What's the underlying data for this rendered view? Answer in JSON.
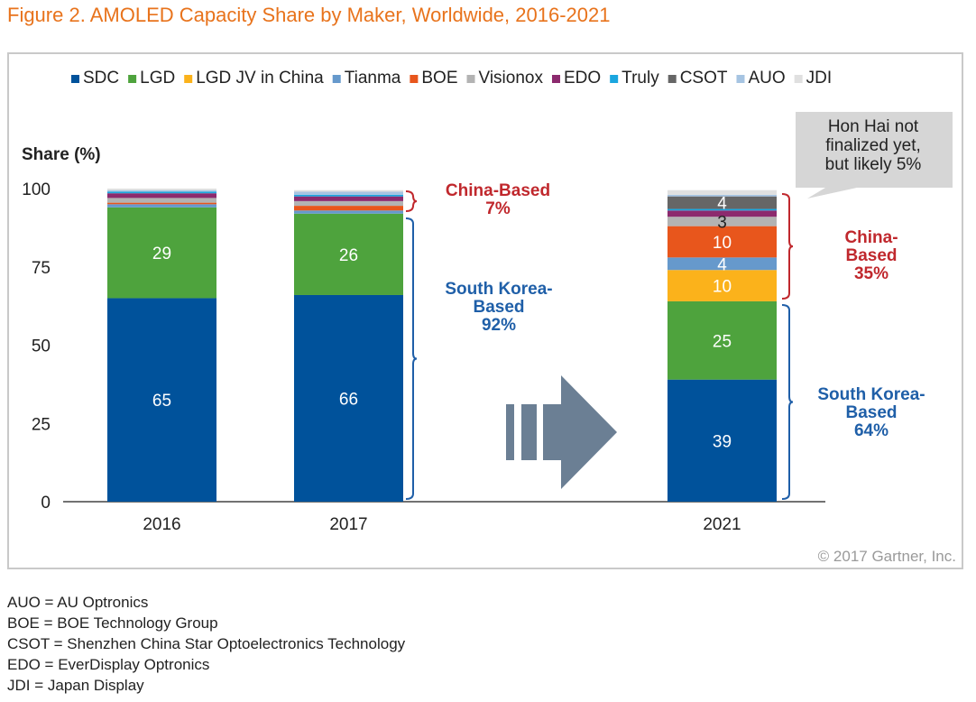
{
  "figure_title": "Figure 2. AMOLED Capacity Share by Maker, Worldwide, 2016-2021",
  "copyright": "© 2017 Gartner, Inc.",
  "callout": [
    "Hon Hai not",
    "finalized yet,",
    "but likely 5%"
  ],
  "group_labels": {
    "china_2017": [
      "China-Based",
      "7%"
    ],
    "korea_2017": [
      "South Korea-",
      "Based",
      "92%"
    ],
    "china_2021": [
      "China-",
      "Based",
      "35%"
    ],
    "korea_2021": [
      "South Korea-",
      "Based",
      "64%"
    ]
  },
  "footnotes": [
    "AUO = AU Optronics",
    "BOE = BOE Technology Group",
    "CSOT = Shenzhen China Star Optoelectronics Technology",
    "EDO = EverDisplay Optronics",
    "JDI = Japan Display"
  ],
  "colors": {
    "title": "#e8731c",
    "china_label": "#c0282d",
    "korea_label": "#1f5fa8",
    "callout_bg": "#d6d6d6",
    "arrow": "#6b7f94"
  },
  "chart_data": {
    "type": "bar",
    "stacked": true,
    "ylabel": "Share (%)",
    "ylim": [
      0,
      100
    ],
    "yticks": [
      0,
      25,
      50,
      75,
      100
    ],
    "grid": false,
    "legend_position": "top",
    "categories": [
      "2016",
      "2017",
      "2021"
    ],
    "series": [
      {
        "name": "SDC",
        "color": "#00529b",
        "values": [
          65,
          66,
          39
        ]
      },
      {
        "name": "LGD",
        "color": "#4ea33d",
        "values": [
          29,
          26,
          25
        ]
      },
      {
        "name": "LGD JV in China",
        "color": "#fbb21b",
        "values": [
          0,
          0,
          10
        ]
      },
      {
        "name": "Tianma",
        "color": "#6699cc",
        "values": [
          1,
          1,
          4
        ]
      },
      {
        "name": "BOE",
        "color": "#e8561c",
        "values": [
          0.5,
          1.5,
          10
        ]
      },
      {
        "name": "Visionox",
        "color": "#b3b3b3",
        "values": [
          1.5,
          1.5,
          3
        ]
      },
      {
        "name": "EDO",
        "color": "#8c2a6e",
        "values": [
          1.5,
          1.5,
          2
        ]
      },
      {
        "name": "Truly",
        "color": "#1aa6df",
        "values": [
          0.5,
          0.5,
          0.5
        ]
      },
      {
        "name": "CSOT",
        "color": "#666666",
        "values": [
          0,
          0,
          4
        ]
      },
      {
        "name": "AUO",
        "color": "#a6c4e2",
        "values": [
          0.5,
          1,
          0.5
        ]
      },
      {
        "name": "JDI",
        "color": "#e0e0e0",
        "values": [
          0.5,
          0.5,
          1.5
        ]
      }
    ],
    "data_labels": [
      {
        "category": "2016",
        "series": "SDC",
        "text": "65"
      },
      {
        "category": "2016",
        "series": "LGD",
        "text": "29"
      },
      {
        "category": "2017",
        "series": "SDC",
        "text": "66"
      },
      {
        "category": "2017",
        "series": "LGD",
        "text": "26"
      },
      {
        "category": "2021",
        "series": "SDC",
        "text": "39"
      },
      {
        "category": "2021",
        "series": "LGD",
        "text": "25"
      },
      {
        "category": "2021",
        "series": "LGD JV in China",
        "text": "10"
      },
      {
        "category": "2021",
        "series": "Tianma",
        "text": "4"
      },
      {
        "category": "2021",
        "series": "BOE",
        "text": "10"
      },
      {
        "category": "2021",
        "series": "Visionox",
        "text": "3"
      },
      {
        "category": "2021",
        "series": "CSOT",
        "text": "4"
      }
    ]
  }
}
